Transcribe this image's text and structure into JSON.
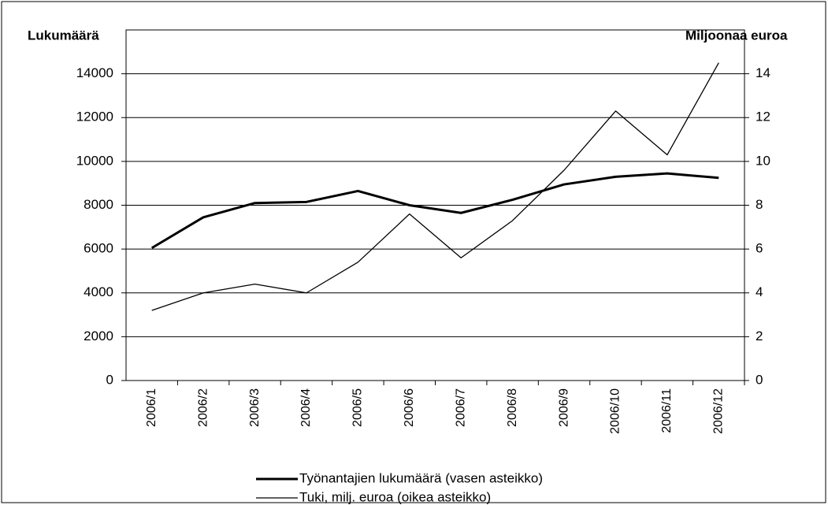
{
  "chart_data": {
    "type": "line",
    "y_label": "Lukumäärä",
    "y2_label": "Miljoonaa euroa",
    "categories": [
      "2006/1",
      "2006/2",
      "2006/3",
      "2006/4",
      "2006/5",
      "2006/6",
      "2006/7",
      "2006/8",
      "2006/9",
      "2006/10",
      "2006/11",
      "2006/12"
    ],
    "series": [
      {
        "name": "Työnantajien lukumäärä (vasen asteikko)",
        "color": "#000000",
        "width": 3,
        "axis": "y",
        "values": [
          6050,
          7450,
          8100,
          8150,
          8650,
          8000,
          7650,
          8250,
          8950,
          9300,
          9450,
          9250
        ]
      },
      {
        "name": "Tuki, milj. euroa (oikea asteikko)",
        "color": "#000000",
        "width": 1.3,
        "axis": "y2",
        "values": [
          3.2,
          4.0,
          4.4,
          4.0,
          5.4,
          7.6,
          5.6,
          7.3,
          9.6,
          12.3,
          10.3,
          14.5
        ]
      }
    ],
    "ylim": [
      0,
      16000
    ],
    "yticks": [
      0,
      2000,
      4000,
      6000,
      8000,
      10000,
      12000,
      14000
    ],
    "y2lim": [
      0,
      16
    ],
    "y2ticks": [
      0,
      2,
      4,
      6,
      8,
      10,
      12,
      14
    ],
    "grid": true,
    "legend": "bottom"
  }
}
